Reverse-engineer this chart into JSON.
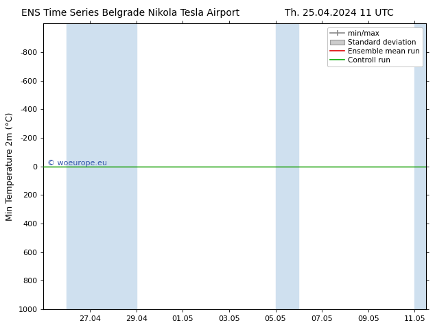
{
  "title_left": "ENS Time Series Belgrade Nikola Tesla Airport",
  "title_right": "Th. 25.04.2024 11 UTC",
  "ylabel": "Min Temperature 2m (°C)",
  "ylim_top": -1000,
  "ylim_bottom": 1000,
  "yticks": [
    -800,
    -600,
    -400,
    -200,
    0,
    200,
    400,
    600,
    800,
    1000
  ],
  "background_color": "#ffffff",
  "plot_bg_color": "#ffffff",
  "blue_band_color": "#cfe0ef",
  "blue_bands_days": [
    [
      1.0,
      3.0
    ],
    [
      3.0,
      4.0
    ],
    [
      10.0,
      11.0
    ],
    [
      16.0,
      16.5
    ]
  ],
  "xtick_days": [
    2,
    4,
    6,
    8,
    10,
    12,
    14,
    16
  ],
  "xtick_labels": [
    "27.04",
    "29.04",
    "01.05",
    "03.05",
    "05.05",
    "07.05",
    "09.05",
    "11.05"
  ],
  "xlim": [
    0,
    16.5
  ],
  "green_line_y": 0,
  "red_line_y": 0,
  "watermark": "© woeurope.eu",
  "watermark_color": "#3355aa",
  "legend_labels": [
    "min/max",
    "Standard deviation",
    "Ensemble mean run",
    "Controll run"
  ],
  "minmax_color": "#888888",
  "std_fill_color": "#cccccc",
  "std_edge_color": "#999999",
  "ensemble_color": "#dd0000",
  "control_color": "#00aa00",
  "title_fontsize": 10,
  "axis_label_fontsize": 9,
  "tick_fontsize": 8,
  "legend_fontsize": 7.5
}
